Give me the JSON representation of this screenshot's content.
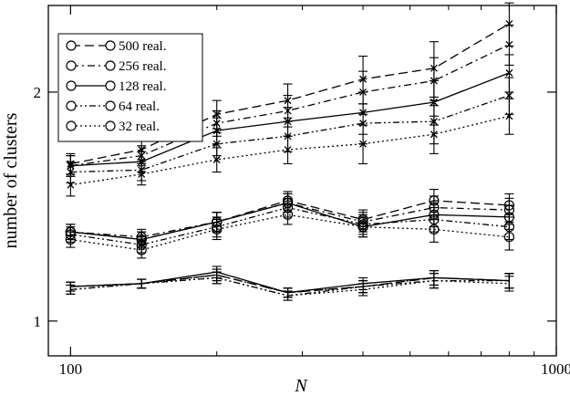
{
  "chart_data": {
    "type": "line",
    "xlabel": "N",
    "ylabel": "number of clusters",
    "xscale": "log",
    "yscale": "log",
    "xlim": [
      90,
      1000
    ],
    "ylim": [
      0.9,
      2.6
    ],
    "xticks": [
      {
        "value": 100,
        "label": "100"
      },
      {
        "value": 1000,
        "label": "1000"
      }
    ],
    "yticks": [
      {
        "value": 1,
        "label": "1"
      },
      {
        "value": 2,
        "label": "2"
      }
    ],
    "x": [
      100,
      140,
      200,
      280,
      400,
      560,
      800
    ],
    "legend_position": "top-left",
    "legend": [
      {
        "label": "500 real.",
        "dash": "dashed"
      },
      {
        "label": "256 real.",
        "dash": "dashdot"
      },
      {
        "label": "128 real.",
        "dash": "solid"
      },
      {
        "label": "64 real.",
        "dash": "dashdotdot"
      },
      {
        "label": "32 real.",
        "dash": "dotted"
      }
    ],
    "groups": [
      {
        "marker": "x",
        "series": [
          {
            "dash": "dashed",
            "values": [
              1.61,
              1.68,
              1.87,
              1.95,
              2.08,
              2.15,
              2.46
            ],
            "errors": [
              0.05,
              0.06,
              0.08,
              0.1,
              0.15,
              0.18,
              0.16
            ]
          },
          {
            "dash": "dashdot",
            "values": [
              1.6,
              1.65,
              1.82,
              1.89,
              2.0,
              2.07,
              2.31
            ],
            "errors": [
              0.05,
              0.05,
              0.07,
              0.09,
              0.13,
              0.15,
              0.14
            ]
          },
          {
            "dash": "solid",
            "values": [
              1.6,
              1.62,
              1.78,
              1.83,
              1.88,
              1.94,
              2.12
            ],
            "errors": [
              0.05,
              0.05,
              0.07,
              0.08,
              0.12,
              0.13,
              0.12
            ]
          },
          {
            "dash": "dashdotdot",
            "values": [
              1.57,
              1.58,
              1.71,
              1.75,
              1.82,
              1.83,
              1.98
            ],
            "errors": [
              0.05,
              0.05,
              0.06,
              0.08,
              0.11,
              0.12,
              0.11
            ]
          },
          {
            "dash": "dotted",
            "values": [
              1.51,
              1.56,
              1.63,
              1.68,
              1.71,
              1.76,
              1.86
            ],
            "errors": [
              0.05,
              0.05,
              0.06,
              0.07,
              0.1,
              0.1,
              0.1
            ]
          }
        ]
      },
      {
        "marker": "circle",
        "series": [
          {
            "dash": "dashed",
            "values": [
              1.31,
              1.28,
              1.35,
              1.44,
              1.36,
              1.44,
              1.42
            ],
            "errors": [
              0.03,
              0.03,
              0.04,
              0.04,
              0.04,
              0.05,
              0.05
            ]
          },
          {
            "dash": "dashdot",
            "values": [
              1.31,
              1.29,
              1.35,
              1.43,
              1.35,
              1.41,
              1.4
            ],
            "errors": [
              0.03,
              0.03,
              0.04,
              0.04,
              0.04,
              0.05,
              0.05
            ]
          },
          {
            "dash": "solid",
            "values": [
              1.31,
              1.28,
              1.35,
              1.43,
              1.33,
              1.38,
              1.37
            ],
            "errors": [
              0.03,
              0.03,
              0.04,
              0.04,
              0.04,
              0.05,
              0.05
            ]
          },
          {
            "dash": "dashdotdot",
            "values": [
              1.3,
              1.26,
              1.33,
              1.41,
              1.34,
              1.36,
              1.33
            ],
            "errors": [
              0.03,
              0.03,
              0.04,
              0.04,
              0.04,
              0.05,
              0.05
            ]
          },
          {
            "dash": "dotted",
            "values": [
              1.28,
              1.24,
              1.32,
              1.38,
              1.33,
              1.32,
              1.29
            ],
            "errors": [
              0.03,
              0.03,
              0.04,
              0.04,
              0.04,
              0.05,
              0.05
            ]
          }
        ]
      },
      {
        "marker": "bar",
        "series": [
          {
            "dash": "dashed",
            "values": [
              1.11,
              1.12,
              1.15,
              1.09,
              1.11,
              1.14,
              1.13
            ],
            "errors": [
              0.015,
              0.015,
              0.02,
              0.015,
              0.02,
              0.025,
              0.025
            ]
          },
          {
            "dash": "dashdot",
            "values": [
              1.11,
              1.12,
              1.15,
              1.09,
              1.11,
              1.14,
              1.13
            ],
            "errors": [
              0.015,
              0.015,
              0.02,
              0.015,
              0.02,
              0.025,
              0.025
            ]
          },
          {
            "dash": "solid",
            "values": [
              1.11,
              1.12,
              1.16,
              1.09,
              1.12,
              1.14,
              1.13
            ],
            "errors": [
              0.015,
              0.015,
              0.02,
              0.015,
              0.02,
              0.025,
              0.025
            ]
          },
          {
            "dash": "dashdotdot",
            "values": [
              1.1,
              1.12,
              1.14,
              1.08,
              1.11,
              1.13,
              1.13
            ],
            "errors": [
              0.015,
              0.015,
              0.02,
              0.015,
              0.02,
              0.025,
              0.025
            ]
          },
          {
            "dash": "dotted",
            "values": [
              1.1,
              1.12,
              1.14,
              1.08,
              1.1,
              1.13,
              1.12
            ],
            "errors": [
              0.015,
              0.015,
              0.02,
              0.015,
              0.02,
              0.025,
              0.025
            ]
          }
        ]
      }
    ]
  }
}
